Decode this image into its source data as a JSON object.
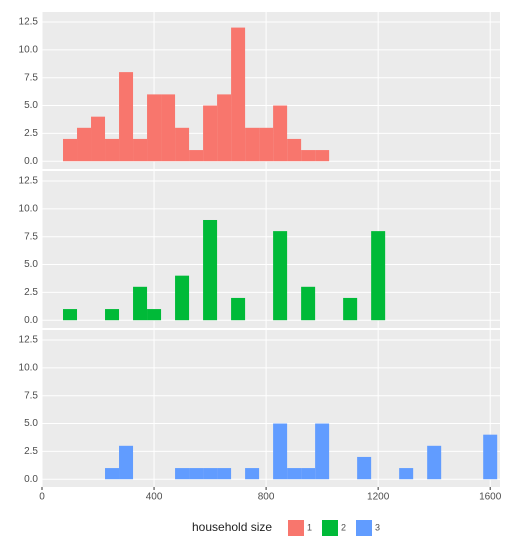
{
  "chart_data": {
    "type": "histogram",
    "bins": [
      75,
      125,
      175,
      225,
      275,
      325,
      375,
      425,
      475,
      525,
      575,
      625,
      675,
      725,
      775,
      825,
      875,
      925,
      975,
      1025,
      1075,
      1125,
      1175,
      1225,
      1275,
      1325,
      1375,
      1425,
      1475,
      1525,
      1575,
      1625
    ],
    "series": [
      {
        "name": "1",
        "color": "#f8766d",
        "values": [
          2,
          3,
          4,
          2,
          8,
          2,
          6,
          6,
          3,
          1,
          5,
          6,
          12,
          3,
          3,
          5,
          2,
          1,
          1,
          0,
          0,
          0,
          0,
          0,
          0,
          0,
          0,
          0,
          0,
          0,
          0
        ]
      },
      {
        "name": "2",
        "color": "#00ba38",
        "values": [
          1,
          0,
          0,
          1,
          0,
          3,
          1,
          0,
          4,
          0,
          9,
          0,
          2,
          0,
          0,
          8,
          0,
          3,
          0,
          0,
          2,
          0,
          8,
          0,
          0,
          0,
          0,
          0,
          0,
          0,
          0
        ]
      },
      {
        "name": "3",
        "color": "#619cff",
        "values": [
          0,
          0,
          0,
          1,
          3,
          0,
          0,
          0,
          1,
          1,
          1,
          1,
          0,
          1,
          0,
          5,
          1,
          1,
          5,
          0,
          0,
          2,
          0,
          0,
          1,
          0,
          3,
          0,
          0,
          0,
          4
        ]
      }
    ],
    "legend_title": "household size",
    "xlim": [
      0,
      1635
    ],
    "xticks": [
      0,
      400,
      800,
      1200,
      1600
    ],
    "ylim": [
      -0.7,
      13.4
    ],
    "yticks": [
      {
        "value": 0,
        "label": "0.0"
      },
      2.5,
      {
        "value": 5,
        "label": "5.0"
      },
      7.5,
      {
        "value": 10,
        "label": "10.0"
      },
      12.5
    ],
    "grid": true
  }
}
